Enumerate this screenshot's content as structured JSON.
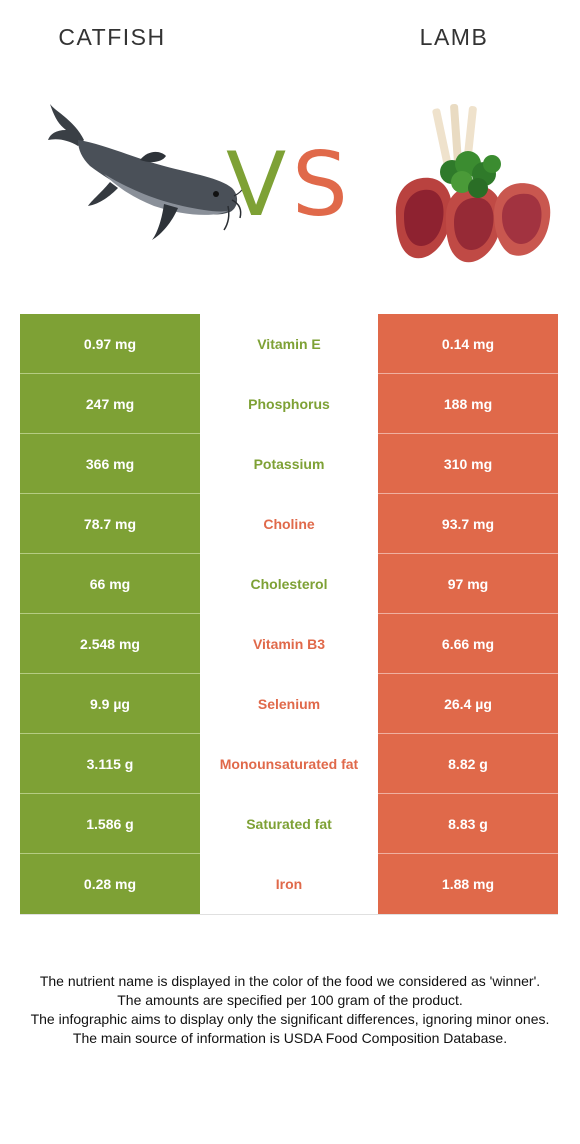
{
  "foods": {
    "left": {
      "name": "CATFISH",
      "image": "catfish-photo",
      "color": "#7ea135"
    },
    "right": {
      "name": "LAMB",
      "image": "lamb-chops-photo",
      "color": "#e0694a"
    }
  },
  "vs": {
    "v": "V",
    "s": "S"
  },
  "rows": [
    {
      "left": "0.97 mg",
      "nutrient": "Vitamin E",
      "right": "0.14 mg",
      "winner": "left"
    },
    {
      "left": "247 mg",
      "nutrient": "Phosphorus",
      "right": "188 mg",
      "winner": "left"
    },
    {
      "left": "366 mg",
      "nutrient": "Potassium",
      "right": "310 mg",
      "winner": "left"
    },
    {
      "left": "78.7 mg",
      "nutrient": "Choline",
      "right": "93.7 mg",
      "winner": "right"
    },
    {
      "left": "66 mg",
      "nutrient": "Cholesterol",
      "right": "97 mg",
      "winner": "left"
    },
    {
      "left": "2.548 mg",
      "nutrient": "Vitamin B3",
      "right": "6.66 mg",
      "winner": "right"
    },
    {
      "left": "9.9 µg",
      "nutrient": "Selenium",
      "right": "26.4 µg",
      "winner": "right"
    },
    {
      "left": "3.115 g",
      "nutrient": "Monounsaturated fat",
      "right": "8.82 g",
      "winner": "right"
    },
    {
      "left": "1.586 g",
      "nutrient": "Saturated fat",
      "right": "8.83 g",
      "winner": "left"
    },
    {
      "left": "0.28 mg",
      "nutrient": "Iron",
      "right": "1.88 mg",
      "winner": "right"
    }
  ],
  "footnote": [
    "The nutrient name is displayed in the color of the food we considered as 'winner'.",
    "The amounts are specified per 100 gram of the product.",
    "The infographic aims to display only the significant differences, ignoring minor ones.",
    "The main source of information is USDA Food Composition Database."
  ]
}
